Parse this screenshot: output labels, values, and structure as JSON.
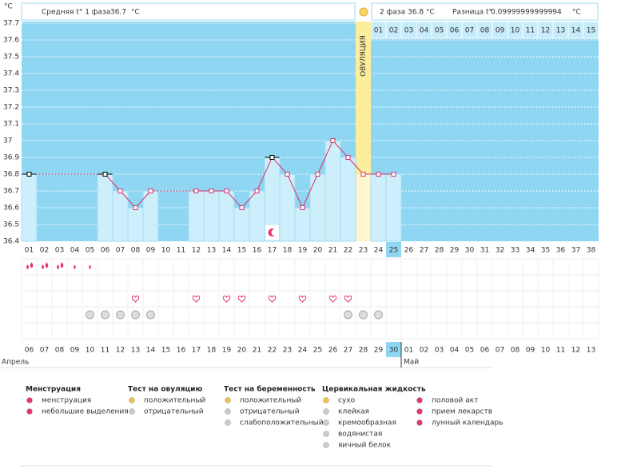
{
  "chart_data": {
    "type": "line",
    "y_unit": "°C",
    "categories": [
      "01",
      "02",
      "03",
      "04",
      "05",
      "06",
      "07",
      "08",
      "09",
      "10",
      "11",
      "12",
      "13",
      "14",
      "15",
      "16",
      "17",
      "18",
      "19",
      "20",
      "21",
      "22",
      "23",
      "24",
      "25",
      "26",
      "27",
      "28",
      "29",
      "30",
      "31",
      "32",
      "33",
      "34",
      "35",
      "36",
      "37",
      "38"
    ],
    "series": [
      {
        "name": "t°",
        "color": "#d6336c",
        "values": [
          36.8,
          null,
          null,
          null,
          null,
          36.8,
          36.7,
          36.6,
          36.7,
          null,
          null,
          36.7,
          36.7,
          36.7,
          36.6,
          36.7,
          36.9,
          36.8,
          36.6,
          36.8,
          37.0,
          36.9,
          36.8,
          36.8,
          36.8,
          null,
          null,
          null,
          null,
          null,
          null,
          null,
          null,
          null,
          null,
          null,
          null,
          null
        ]
      }
    ],
    "highlighted_days": [
      1,
      6,
      17
    ],
    "highlight_color": "#000000",
    "ylim": [
      36.4,
      37.7
    ],
    "yticks": [
      36.4,
      36.5,
      36.6,
      36.7,
      36.8,
      36.9,
      37,
      37.1,
      37.2,
      37.3,
      37.4,
      37.5,
      37.6,
      37.7
    ],
    "grid": true,
    "ovulation_day": 23,
    "ovulation_label": "ОВУЛЯЦИЯ",
    "post_ovulation_days": [
      "01",
      "02",
      "03",
      "04",
      "05",
      "06",
      "07",
      "08",
      "09",
      "10",
      "11",
      "12",
      "13",
      "14",
      "15"
    ],
    "today_day": 25
  },
  "header": {
    "phase1_label": "Средняя t° 1 фаза",
    "phase1_value": 36.7,
    "unit": "°C",
    "phase2_label": "2 фаза",
    "phase2_value": 36.8,
    "diff_label": "Разница t°",
    "diff_value": "0.09999999999994"
  },
  "symbols": {
    "menstruation_heavy": [
      1,
      2,
      3
    ],
    "menstruation_light": [
      4,
      5
    ],
    "intercourse": [
      8,
      12,
      14,
      15,
      17,
      19,
      21,
      22
    ],
    "medication": [
      5,
      6,
      7,
      8,
      9,
      22,
      23,
      24
    ],
    "moon": [
      17
    ]
  },
  "calendar": {
    "dates": [
      "06",
      "07",
      "08",
      "09",
      "10",
      "11",
      "12",
      "13",
      "14",
      "15",
      "16",
      "17",
      "18",
      "19",
      "20",
      "21",
      "22",
      "23",
      "24",
      "25",
      "26",
      "27",
      "28",
      "29",
      "30",
      "01",
      "02",
      "03",
      "04",
      "05",
      "06",
      "07",
      "08",
      "09",
      "10",
      "11",
      "12",
      "13"
    ],
    "red": [
      true,
      false,
      false,
      false,
      false,
      false,
      true,
      true,
      false,
      false,
      false,
      false,
      false,
      true,
      true,
      false,
      false,
      false,
      false,
      false,
      true,
      true,
      false,
      false,
      false,
      false,
      false,
      true,
      true,
      false,
      false,
      false,
      false,
      false,
      true,
      true,
      false,
      false
    ],
    "red_color": "#d6336c",
    "months": [
      {
        "name": "Апрель",
        "start_day": 1
      },
      {
        "name": "Май",
        "start_day": 26
      }
    ]
  },
  "legend": [
    {
      "title": "Менструация",
      "items": [
        "менструация",
        "небольшие выделения"
      ]
    },
    {
      "title": "Тест на овуляцию",
      "items": [
        "положительный",
        "отрицательный"
      ]
    },
    {
      "title": "Тест на беременность",
      "items": [
        "положительный",
        "отрицательный",
        "слабоположительный"
      ]
    },
    {
      "title": "Цервикальная жидкость",
      "items": [
        "сухо",
        "клейкая",
        "кремообразная",
        "водянистая",
        "яичный белок"
      ]
    },
    {
      "items": [
        "половой акт",
        "прием лекарств",
        "лунный календарь"
      ]
    }
  ]
}
